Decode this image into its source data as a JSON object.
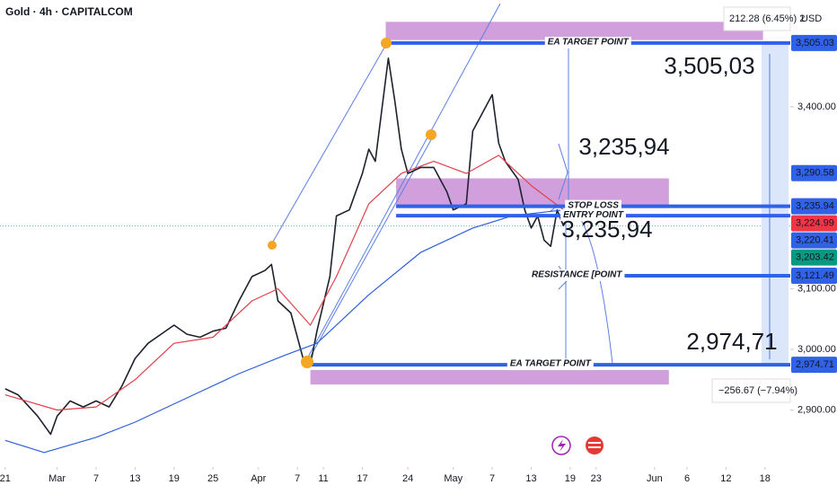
{
  "chart_data": {
    "type": "line",
    "title": "Gold · 4h · CAPITALCOM",
    "xlim": [
      51.2,
      172.9
    ],
    "ylim": [
      2806,
      3576
    ],
    "xticks": [
      {
        "value": 52,
        "label": "21"
      },
      {
        "value": 60,
        "label": "Mar"
      },
      {
        "value": 66,
        "label": "7"
      },
      {
        "value": 72,
        "label": "13"
      },
      {
        "value": 78,
        "label": "19"
      },
      {
        "value": 84,
        "label": "25"
      },
      {
        "value": 91,
        "label": "Apr"
      },
      {
        "value": 97,
        "label": "7"
      },
      {
        "value": 101,
        "label": "11"
      },
      {
        "value": 107,
        "label": "17"
      },
      {
        "value": 114,
        "label": "24"
      },
      {
        "value": 121,
        "label": "May"
      },
      {
        "value": 127,
        "label": "7"
      },
      {
        "value": 133,
        "label": "13"
      },
      {
        "value": 139,
        "label": "19"
      },
      {
        "value": 143,
        "label": "23"
      },
      {
        "value": 152,
        "label": "Jun"
      },
      {
        "value": 157,
        "label": "6"
      },
      {
        "value": 163,
        "label": "12"
      },
      {
        "value": 169,
        "label": "18"
      }
    ],
    "yticks": [
      {
        "value": 3400,
        "label": "3,400.00"
      },
      {
        "value": 3100,
        "label": "3,100.00"
      },
      {
        "value": 3000,
        "label": "3,000.00"
      },
      {
        "value": 2900,
        "label": "2,900.00"
      }
    ],
    "series": [
      {
        "color": "#1e222d",
        "x": [
          52,
          54,
          57,
          59,
          60,
          62,
          64,
          66,
          68,
          70,
          72,
          74,
          76,
          78,
          80,
          82,
          84,
          86,
          88,
          90,
          92,
          93,
          94,
          96,
          98,
          99,
          100,
          102,
          103,
          105,
          107,
          108,
          109,
          111,
          112,
          113,
          114,
          116,
          118,
          120,
          121,
          123,
          124,
          126,
          127,
          128,
          129,
          131,
          132,
          133,
          134,
          135,
          136,
          137,
          138
        ],
        "values": [
          2935,
          2925,
          2890,
          2860,
          2890,
          2915,
          2905,
          2915,
          2905,
          2940,
          2985,
          3010,
          3025,
          3040,
          3025,
          3020,
          3030,
          3035,
          3080,
          3120,
          3130,
          3140,
          3080,
          3060,
          2980,
          2975,
          3030,
          3120,
          3220,
          3230,
          3290,
          3330,
          3310,
          3480,
          3410,
          3330,
          3290,
          3300,
          3300,
          3260,
          3230,
          3240,
          3360,
          3400,
          3420,
          3340,
          3310,
          3280,
          3230,
          3200,
          3220,
          3180,
          3170,
          3230,
          3203
        ]
      },
      {
        "color": "#e0404a",
        "x": [
          52,
          60,
          66,
          72,
          78,
          84,
          90,
          94,
          99,
          103,
          108,
          113,
          118,
          123,
          128,
          133,
          138
        ],
        "values": [
          2925,
          2900,
          2905,
          2950,
          3010,
          3020,
          3080,
          3100,
          3040,
          3120,
          3240,
          3290,
          3310,
          3290,
          3320,
          3270,
          3230
        ]
      },
      {
        "color": "#2e5fd8",
        "x": [
          52,
          58,
          66,
          72,
          80,
          88,
          95,
          100,
          108,
          116,
          124,
          130,
          138
        ],
        "values": [
          2850,
          2830,
          2855,
          2880,
          2920,
          2960,
          2990,
          3010,
          3090,
          3160,
          3200,
          3220,
          3230
        ]
      }
    ],
    "zones": [
      {
        "low": 3510,
        "high": 3540,
        "start": 110.6,
        "end": 168.7,
        "color": "#c98fd6"
      },
      {
        "low": 3233,
        "high": 3282,
        "start": 112.2,
        "end": 154.2,
        "color": "#c98fd6"
      },
      {
        "low": 2942,
        "high": 2966,
        "start": 99.0,
        "end": 154.2,
        "color": "#c98fd6"
      }
    ],
    "levels": [
      {
        "value": 3505.03,
        "label": "EA TARGET POINT",
        "start": 110.6
      },
      {
        "value": 3235.94,
        "label": "STOP LOSS",
        "start": 112.2
      },
      {
        "value": 3220.41,
        "label": "ENTRY POINT",
        "start": 112.2
      },
      {
        "value": 3121.49,
        "label": "RESISTANCE [POINT",
        "start": 134.8
      },
      {
        "value": 2974.71,
        "label": "EA TARGET POINT",
        "start": 99.0
      }
    ],
    "level_color": "#2f62e6",
    "price_tags": [
      {
        "value": 3505.03,
        "label": "3,505.03",
        "color": "#2f62e6"
      },
      {
        "value": 3290.58,
        "label": "3,290.58",
        "color": "#2f62e6"
      },
      {
        "value": 3235.94,
        "label": "3,235.94",
        "color": "#2f62e6"
      },
      {
        "value": 3224.99,
        "label": "3,224.99",
        "color": "#f23645"
      },
      {
        "value": 3220.41,
        "label": "3,220.41",
        "color": "#2f62e6"
      },
      {
        "value": 3203.42,
        "label": "3,203.42",
        "color": "#089981"
      },
      {
        "value": 3121.49,
        "label": "3,121.49",
        "color": "#2f62e6"
      },
      {
        "value": 2974.71,
        "label": "2,974.71",
        "color": "#2f62e6"
      }
    ],
    "annotations": [
      "3,505,03",
      "3,235,94",
      "3,235,94",
      "2,974,71"
    ],
    "measure_top": "212.28 (6.45%) 2",
    "currency": "USD",
    "measure_bottom": "−256.67 (−7.94%)"
  }
}
